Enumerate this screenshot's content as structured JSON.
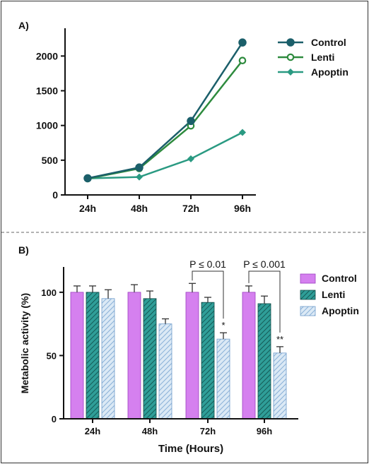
{
  "panels": [
    {
      "label": "A)",
      "chart_data": {
        "type": "line",
        "title": "",
        "xlabel": "",
        "ylabel": "",
        "categories": [
          "24h",
          "48h",
          "72h",
          "96h"
        ],
        "ylim": [
          0,
          2400
        ],
        "yticks": [
          0,
          500,
          1000,
          1500,
          2000
        ],
        "legend_position": "top-right",
        "series": [
          {
            "name": "Control",
            "color": "#1b5f6a",
            "marker": "filled-circle",
            "values": [
              240,
              395,
              1065,
              2195
            ]
          },
          {
            "name": "Lenti",
            "color": "#2e8b3e",
            "marker": "open-circle",
            "values": [
              235,
              380,
              995,
              1935
            ]
          },
          {
            "name": "Apoptin",
            "color": "#2a9a82",
            "marker": "diamond",
            "values": [
              238,
              258,
              520,
              900
            ]
          }
        ]
      }
    },
    {
      "label": "B)",
      "chart_data": {
        "type": "bar",
        "title": "",
        "xlabel": "Time (Hours)",
        "ylabel": "Metabolic activity (%)",
        "categories": [
          "24h",
          "48h",
          "72h",
          "96h"
        ],
        "ylim": [
          0,
          120
        ],
        "yticks": [
          0,
          50,
          100
        ],
        "legend_position": "top-right",
        "series": [
          {
            "name": "Control",
            "color": "#d580ef",
            "pattern": "solid",
            "values": [
              100,
              100,
              100,
              100
            ],
            "errors": [
              5,
              6,
              7,
              5
            ]
          },
          {
            "name": "Lenti",
            "color": "#2f9e98",
            "pattern": "dense-hatch",
            "values": [
              100,
              95,
              92,
              91
            ],
            "errors": [
              5,
              6,
              4,
              6
            ]
          },
          {
            "name": "Apoptin",
            "color": "#a8cbe6",
            "pattern": "light-hatch",
            "values": [
              95,
              75,
              63,
              52
            ],
            "errors": [
              7,
              4,
              5,
              5
            ]
          }
        ],
        "annotations": [
          {
            "category": "72h",
            "text": "P ≤ 0.01",
            "significance": "*"
          },
          {
            "category": "96h",
            "text": "P ≤ 0.001",
            "significance": "**"
          }
        ]
      }
    }
  ]
}
